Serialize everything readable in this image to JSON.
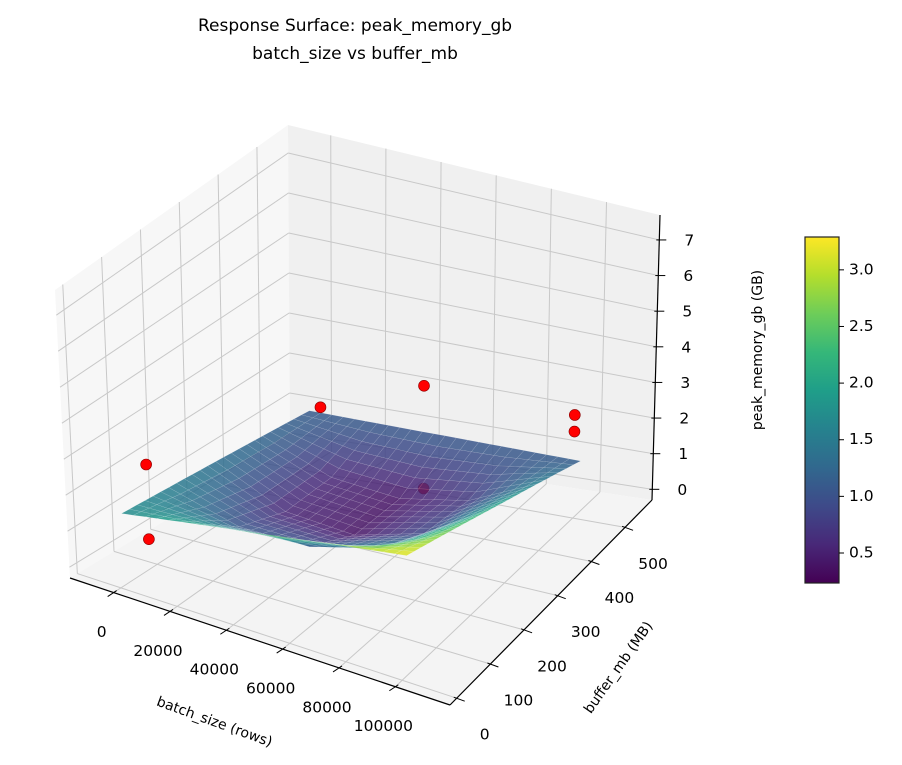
{
  "chart_data": {
    "type": "surface3d",
    "title": [
      "Response Surface: peak_memory_gb",
      "batch_size vs buffer_mb"
    ],
    "xlabel": "batch_size (rows)",
    "ylabel": "buffer_mb (MB)",
    "zlabel": "peak_memory_gb (GB)",
    "xlim": [
      -15500,
      119400
    ],
    "ylim": [
      -20,
      580
    ],
    "zlim": [
      -0.3,
      7.7
    ],
    "xticks": [
      0,
      20000,
      40000,
      60000,
      80000,
      100000
    ],
    "yticks": [
      0,
      100,
      200,
      300,
      400,
      500
    ],
    "zticks": [
      0,
      1,
      2,
      3,
      4,
      5,
      6,
      7
    ],
    "surface": {
      "x": [
        0,
        25000,
        50000,
        75000,
        100000
      ],
      "y": [
        10,
        137.5,
        265,
        392.5,
        520
      ],
      "z": [
        [
          1.7,
          1.55,
          1.4,
          1.25,
          1.1
        ],
        [
          2.08,
          1.04,
          0.54,
          0.56,
          1.1
        ],
        [
          2.45,
          1.06,
          0.38,
          0.39,
          1.1
        ],
        [
          2.83,
          1.6,
          0.91,
          0.74,
          1.1
        ],
        [
          3.2,
          2.68,
          2.15,
          1.63,
          1.1
        ]
      ],
      "colormap": "viridis",
      "alpha": 0.85
    },
    "points": [
      {
        "x": 0,
        "y": 80,
        "z": 0.52
      },
      {
        "x": 0,
        "y": 80,
        "z": 2.57
      },
      {
        "x": 0,
        "y": 550,
        "z": 1.0
      },
      {
        "x": 50000,
        "y": 460,
        "z": 2.9
      },
      {
        "x": 50000,
        "y": 460,
        "z": 0.15
      },
      {
        "x": 100000,
        "y": 500,
        "z": 2.56
      },
      {
        "x": 100000,
        "y": 500,
        "z": 2.1
      }
    ],
    "point_color": "#ff0000",
    "colorbar": {
      "clim": [
        0.235,
        3.29
      ],
      "ticks": [
        "0.5",
        "1.0",
        "1.5",
        "2.0",
        "2.5",
        "3.0"
      ]
    },
    "pane_colors": {
      "left": "#f7f7f7",
      "back": "#f0f0f0",
      "floor": "#f4f4f4"
    },
    "grid_color": "#c8c8c8"
  }
}
